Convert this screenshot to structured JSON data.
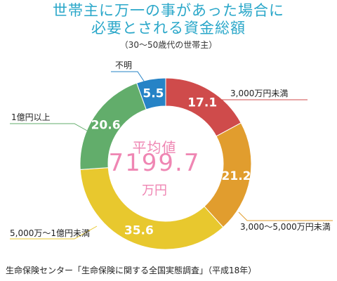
{
  "title_line1": "世帯主に万一の事があった場合に",
  "title_line2": "必要とされる資金総額",
  "subtitle": "（30～50歳代の世帯主）",
  "source": "生命保険センター「生命保険に関する全国実態調査」（平成18年）",
  "chart_data": {
    "type": "pie",
    "center_caption": "平均値",
    "center_value": "7199.7",
    "center_unit": "万円",
    "slices": [
      {
        "label": "3,000万円未満",
        "value": 17.1,
        "value_label": "17.1",
        "color": "#cf4b4b"
      },
      {
        "label": "3,000～5,000万円未満",
        "value": 21.2,
        "value_label": "21.2",
        "color": "#e19d2e"
      },
      {
        "label": "5,000万～1億円未満",
        "value": 35.6,
        "value_label": "35.6",
        "color": "#e8c82e"
      },
      {
        "label": "1億円以上",
        "value": 20.6,
        "value_label": "20.6",
        "color": "#62ad6b"
      },
      {
        "label": "不明",
        "value": 5.5,
        "value_label": "5.5",
        "color": "#2683c6"
      }
    ]
  }
}
